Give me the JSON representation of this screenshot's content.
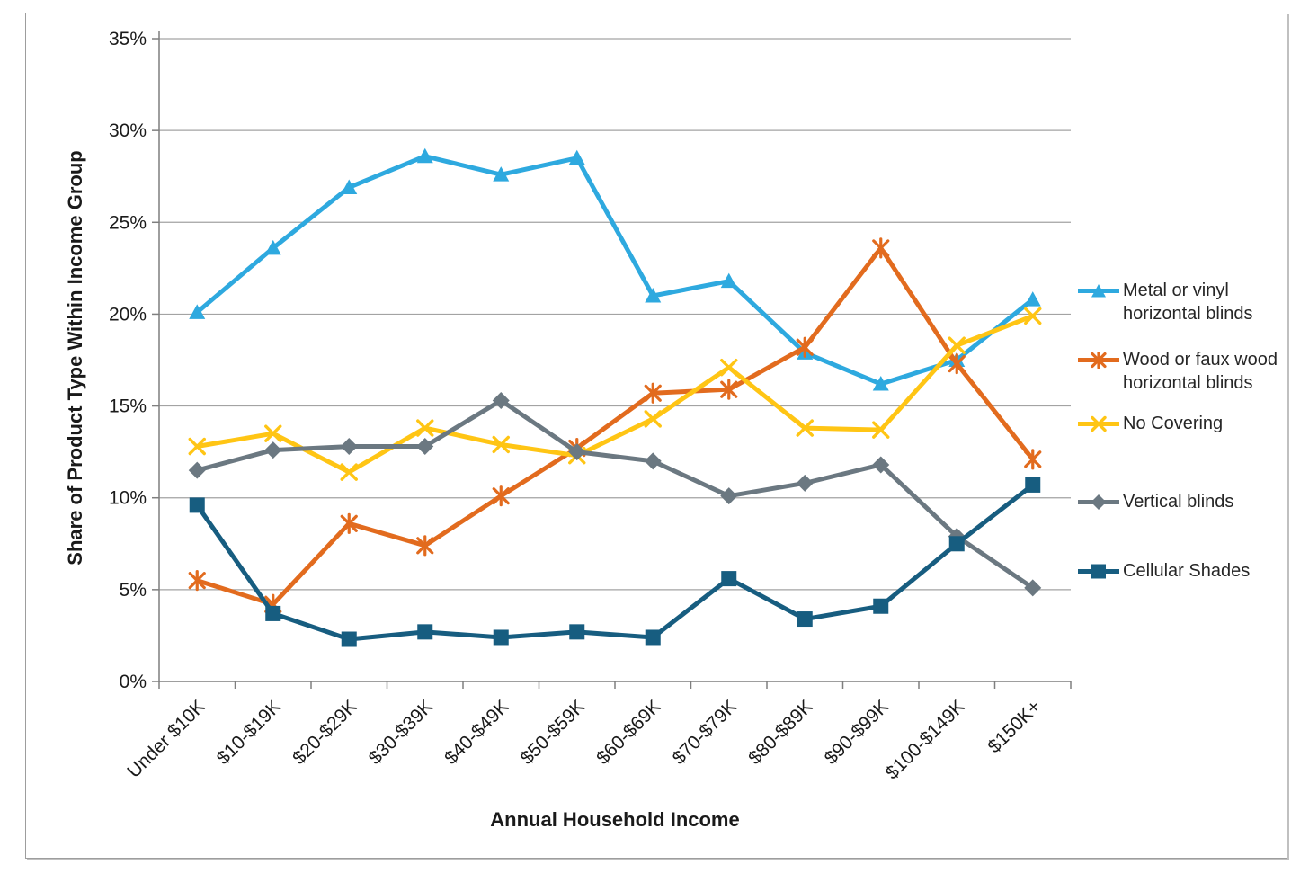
{
  "figure": {
    "type_note": "excel-style line chart with markers"
  },
  "chart_data": {
    "type": "line",
    "title": "",
    "xlabel": "Annual Household Income",
    "ylabel": "Share of Product Type Within Income Group",
    "categories": [
      "Under $10K",
      "$10-$19K",
      "$20-$29K",
      "$30-$39K",
      "$40-$49K",
      "$50-$59K",
      "$60-$69K",
      "$70-$79K",
      "$80-$89K",
      "$90-$99K",
      "$100-$149K",
      "$150K+"
    ],
    "y_tick_labels": [
      "0%",
      "5%",
      "10%",
      "15%",
      "20%",
      "25%",
      "30%",
      "35%"
    ],
    "ylim": [
      0,
      35
    ],
    "y_tick_step": 5,
    "grid": true,
    "legend_position": "right",
    "series": [
      {
        "name": "Metal or vinyl horizontal blinds",
        "legend_lines": [
          "Metal or vinyl",
          "horizontal blinds"
        ],
        "color": "#2EA9DF",
        "marker": "triangle",
        "values": [
          20.1,
          23.6,
          26.9,
          28.6,
          27.6,
          28.5,
          21.0,
          21.8,
          17.9,
          16.2,
          17.5,
          20.8
        ]
      },
      {
        "name": "Wood or faux wood horizontal blinds",
        "legend_lines": [
          "Wood or faux wood",
          "horizontal blinds"
        ],
        "color": "#E26B1E",
        "marker": "asterisk",
        "values": [
          5.5,
          4.2,
          8.6,
          7.4,
          10.1,
          12.7,
          15.7,
          15.9,
          18.2,
          23.6,
          17.3,
          12.1
        ]
      },
      {
        "name": "No Covering",
        "legend_lines": [
          "No Covering"
        ],
        "color": "#FFC514",
        "marker": "x",
        "values": [
          12.8,
          13.5,
          11.4,
          13.8,
          12.9,
          12.3,
          14.3,
          17.1,
          13.8,
          13.7,
          18.3,
          19.9
        ]
      },
      {
        "name": "Vertical blinds",
        "legend_lines": [
          "Vertical blinds"
        ],
        "color": "#6B7881",
        "marker": "diamond",
        "values": [
          11.5,
          12.6,
          12.8,
          12.8,
          15.3,
          12.5,
          12.0,
          10.1,
          10.8,
          11.8,
          7.9,
          5.1
        ]
      },
      {
        "name": "Cellular Shades",
        "legend_lines": [
          "Cellular Shades"
        ],
        "color": "#175D80",
        "marker": "square",
        "values": [
          9.6,
          3.7,
          2.3,
          2.7,
          2.4,
          2.7,
          2.4,
          5.6,
          3.4,
          4.1,
          7.5,
          10.7
        ]
      }
    ]
  }
}
